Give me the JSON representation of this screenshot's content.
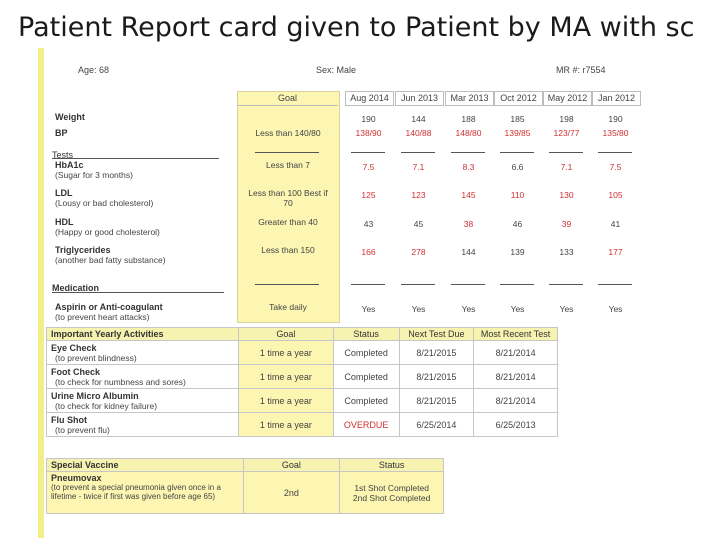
{
  "title": "Patient Report card given to Patient by MA with sc",
  "header": {
    "age": "Age: 68",
    "sex": "Sex: Male",
    "mr": "MR #: r7554"
  },
  "main": {
    "goal_header": "Goal",
    "dates": [
      "Aug 2014",
      "Jun 2013",
      "Mar 2013",
      "Oct 2012",
      "May 2012",
      "Jan 2012"
    ],
    "rows": [
      {
        "label": "Weight",
        "sub": "",
        "goal": "",
        "values": [
          "190",
          "144",
          "188",
          "185",
          "198",
          "190"
        ],
        "red": [
          0,
          0,
          0,
          0,
          0,
          0
        ]
      },
      {
        "label": "BP",
        "sub": "",
        "goal": "Less than 140/80",
        "values": [
          "138/90",
          "140/88",
          "148/80",
          "139/85",
          "123/77",
          "135/80"
        ],
        "red": [
          1,
          1,
          1,
          1,
          1,
          1
        ]
      },
      {
        "label": "HbA1c",
        "sub": "(Sugar for 3 months)",
        "goal": "Less than 7",
        "values": [
          "7.5",
          "7.1",
          "8.3",
          "6.6",
          "7.1",
          "7.5"
        ],
        "red": [
          1,
          1,
          1,
          0,
          1,
          1
        ]
      },
      {
        "label": "LDL",
        "sub": "(Lousy or bad cholesterol)",
        "goal": "Less than 100 Best if 70",
        "values": [
          "125",
          "123",
          "145",
          "110",
          "130",
          "105"
        ],
        "red": [
          1,
          1,
          1,
          1,
          1,
          1
        ]
      },
      {
        "label": "HDL",
        "sub": "(Happy or good cholesterol)",
        "goal": "Greater than 40",
        "values": [
          "43",
          "45",
          "38",
          "46",
          "39",
          "41"
        ],
        "red": [
          0,
          0,
          1,
          0,
          1,
          0
        ]
      },
      {
        "label": "Triglycerides",
        "sub": "(another bad fatty substance)",
        "goal": "Less than 150",
        "values": [
          "166",
          "278",
          "144",
          "139",
          "133",
          "177"
        ],
        "red": [
          1,
          1,
          0,
          0,
          0,
          1
        ]
      },
      {
        "label": "Aspirin or Anti-coagulant",
        "sub": "(to prevent heart attacks)",
        "goal": "Take daily",
        "values": [
          "Yes",
          "Yes",
          "Yes",
          "Yes",
          "Yes",
          "Yes"
        ],
        "red": [
          0,
          0,
          0,
          0,
          0,
          0
        ]
      }
    ],
    "tests_label": "Tests",
    "medication_label": "Medication"
  },
  "yearly": {
    "headers": [
      "Important Yearly Activities",
      "Goal",
      "Status",
      "Next Test Due",
      "Most Recent Test"
    ],
    "rows": [
      {
        "label": "Eye Check",
        "sub": "(to prevent blindness)",
        "goal": "1 time a year",
        "status": "Completed",
        "next": "8/21/2015",
        "recent": "8/21/2014",
        "overdue": false
      },
      {
        "label": "Foot Check",
        "sub": "(to check for numbness and sores)",
        "goal": "1 time a year",
        "status": "Completed",
        "next": "8/21/2015",
        "recent": "8/21/2014",
        "overdue": false
      },
      {
        "label": "Urine Micro Albumin",
        "sub": "(to check for kidney failure)",
        "goal": "1 time a year",
        "status": "Completed",
        "next": "8/21/2015",
        "recent": "8/21/2014",
        "overdue": false
      },
      {
        "label": "Flu Shot",
        "sub": "(to prevent flu)",
        "goal": "1 time a year",
        "status": "OVERDUE",
        "next": "6/25/2014",
        "recent": "6/25/2013",
        "overdue": true
      }
    ]
  },
  "vaccine": {
    "headers": [
      "Special Vaccine",
      "Goal",
      "Status"
    ],
    "label": "Pneumovax",
    "sub": "(to prevent a special pneumonia given once in a lifetime - twice if first was given before age 65)",
    "goal": "2nd",
    "status_1": "1st Shot Completed",
    "status_2": "2nd Shot Completed"
  },
  "colors": {
    "red": "#d03030",
    "yellow": "#fcf6b2",
    "border": "#f2ef88"
  }
}
